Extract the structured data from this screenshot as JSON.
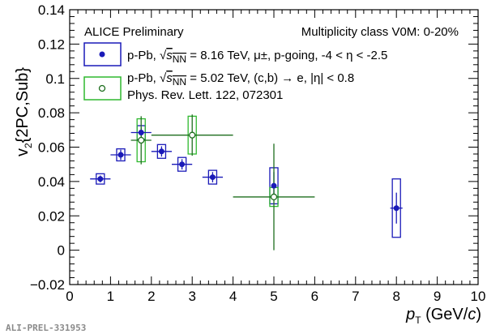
{
  "chart_data": {
    "type": "scatter",
    "xlabel": {
      "main": "p",
      "sub": "T",
      "unit": " (GeV/",
      "unit_italic": "c",
      "unit_close": ")"
    },
    "ylabel": {
      "main": "v",
      "sub": "2",
      "rest": "{2PC,Sub}"
    },
    "xlim": [
      0,
      10
    ],
    "ylim": [
      -0.02,
      0.14
    ],
    "x_ticks": [
      0,
      1,
      2,
      3,
      4,
      5,
      6,
      7,
      8,
      9,
      10
    ],
    "y_ticks": [
      -0.02,
      0,
      0.02,
      0.04,
      0.06,
      0.08,
      0.1,
      0.12,
      0.14
    ],
    "y_tick_labels": [
      "−0.02",
      "0",
      "0.02",
      "0.04",
      "0.06",
      "0.08",
      "0.1",
      "0.12",
      "0.14"
    ],
    "grid": false,
    "annotations": {
      "preliminary": "ALICE Preliminary",
      "multiplicity": "Multiplicity class V0M: 0-20%",
      "watermark": "ALI-PREL-331953"
    },
    "series": [
      {
        "legend": {
          "prefix": "p-Pb, ",
          "snn": "s",
          "snn_sub": "NN",
          "value": " = 8.16 TeV, μ±, p-going, -4 < η < -2.5"
        },
        "color": "#1a1ab8",
        "marker": "filled-circle",
        "box_color": "#1a1ab8",
        "points": [
          {
            "x": 0.75,
            "y": 0.0415,
            "xerr": 0.25,
            "yerr": 0.002,
            "sys_dx": 0.1,
            "sys_dy": 0.003
          },
          {
            "x": 1.25,
            "y": 0.0555,
            "xerr": 0.25,
            "yerr": 0.003,
            "sys_dx": 0.1,
            "sys_dy": 0.0035
          },
          {
            "x": 1.75,
            "y": 0.0685,
            "xerr": 0.25,
            "yerr": 0.003,
            "sys_dx": 0.1,
            "sys_dy": 0.004
          },
          {
            "x": 2.25,
            "y": 0.0575,
            "xerr": 0.25,
            "yerr": 0.003,
            "sys_dx": 0.1,
            "sys_dy": 0.004
          },
          {
            "x": 2.75,
            "y": 0.05,
            "xerr": 0.25,
            "yerr": 0.003,
            "sys_dx": 0.1,
            "sys_dy": 0.004
          },
          {
            "x": 3.5,
            "y": 0.0425,
            "xerr": 0.25,
            "yerr": 0.003,
            "sys_dx": 0.1,
            "sys_dy": 0.004
          },
          {
            "x": 5.0,
            "y": 0.0375,
            "xerr": 0.0,
            "yerr": 0.008,
            "sys_dx": 0.1,
            "sys_dy": 0.0105
          },
          {
            "x": 8.0,
            "y": 0.0245,
            "xerr": 0.15,
            "yerr": 0.009,
            "sys_dx": 0.1,
            "sys_dy": 0.017
          }
        ]
      },
      {
        "legend": {
          "prefix": "p-Pb, ",
          "snn": "s",
          "snn_sub": "NN",
          "value": " = 5.02 TeV, (c,b) → e, |η| < 0.8",
          "line2": "Phys. Rev. Lett. 122, 072301"
        },
        "color": "#1e6e1e",
        "marker": "open-circle",
        "box_color": "#2fb82f",
        "points": [
          {
            "x": 1.75,
            "y": 0.064,
            "xerr": 0.25,
            "yerr": 0.014,
            "sys_dx": 0.1,
            "sys_dy": 0.0125
          },
          {
            "x": 3.0,
            "y": 0.067,
            "xerr": 1.0,
            "yerr": 0.012,
            "sys_dx": 0.1,
            "sys_dy": 0.011
          },
          {
            "x": 5.0,
            "y": 0.031,
            "xerr": 1.0,
            "yerr": 0.031,
            "sys_dx": 0.1,
            "sys_dy": 0.0055
          }
        ]
      }
    ]
  }
}
